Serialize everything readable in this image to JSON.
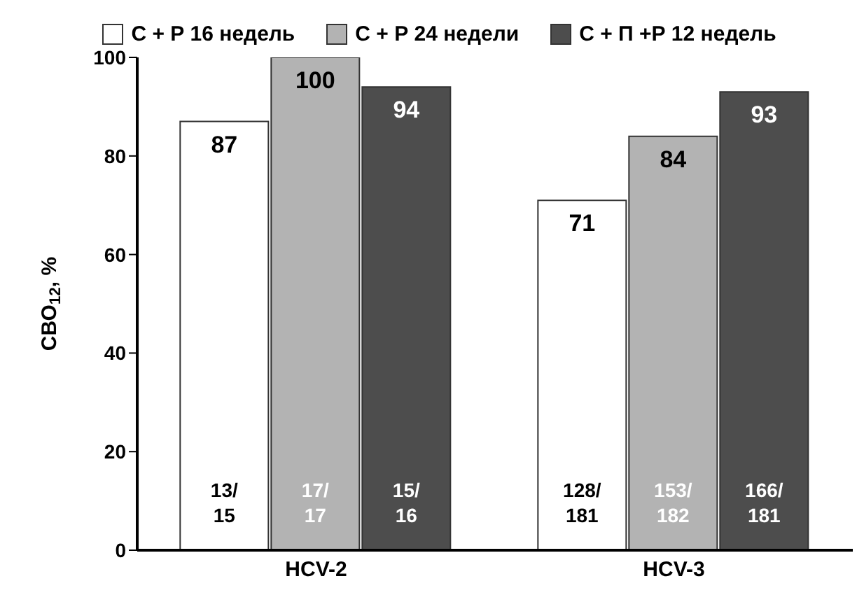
{
  "chart_data": {
    "type": "bar",
    "ylabel": "СВО$_{12}$, %",
    "categories": [
      "HCV-2",
      "HCV-3"
    ],
    "series": [
      {
        "name": "С + Р 16 недель",
        "color": "#ffffff",
        "values": [
          87,
          71
        ]
      },
      {
        "name": "С + Р 24 недели",
        "color": "#b3b3b3",
        "values": [
          100,
          84
        ]
      },
      {
        "name": "С + П +Р 12 недель",
        "color": "#4d4d4d",
        "values": [
          94,
          93
        ]
      }
    ],
    "ylim": [
      0,
      100
    ],
    "yticks": [
      0,
      20,
      40,
      60,
      80,
      100
    ],
    "grid": false,
    "legend": "top",
    "data_labels": true,
    "annotations": [
      "13/15",
      "17/17",
      "15/16",
      "128/181",
      "153/182",
      "166/181"
    ]
  }
}
